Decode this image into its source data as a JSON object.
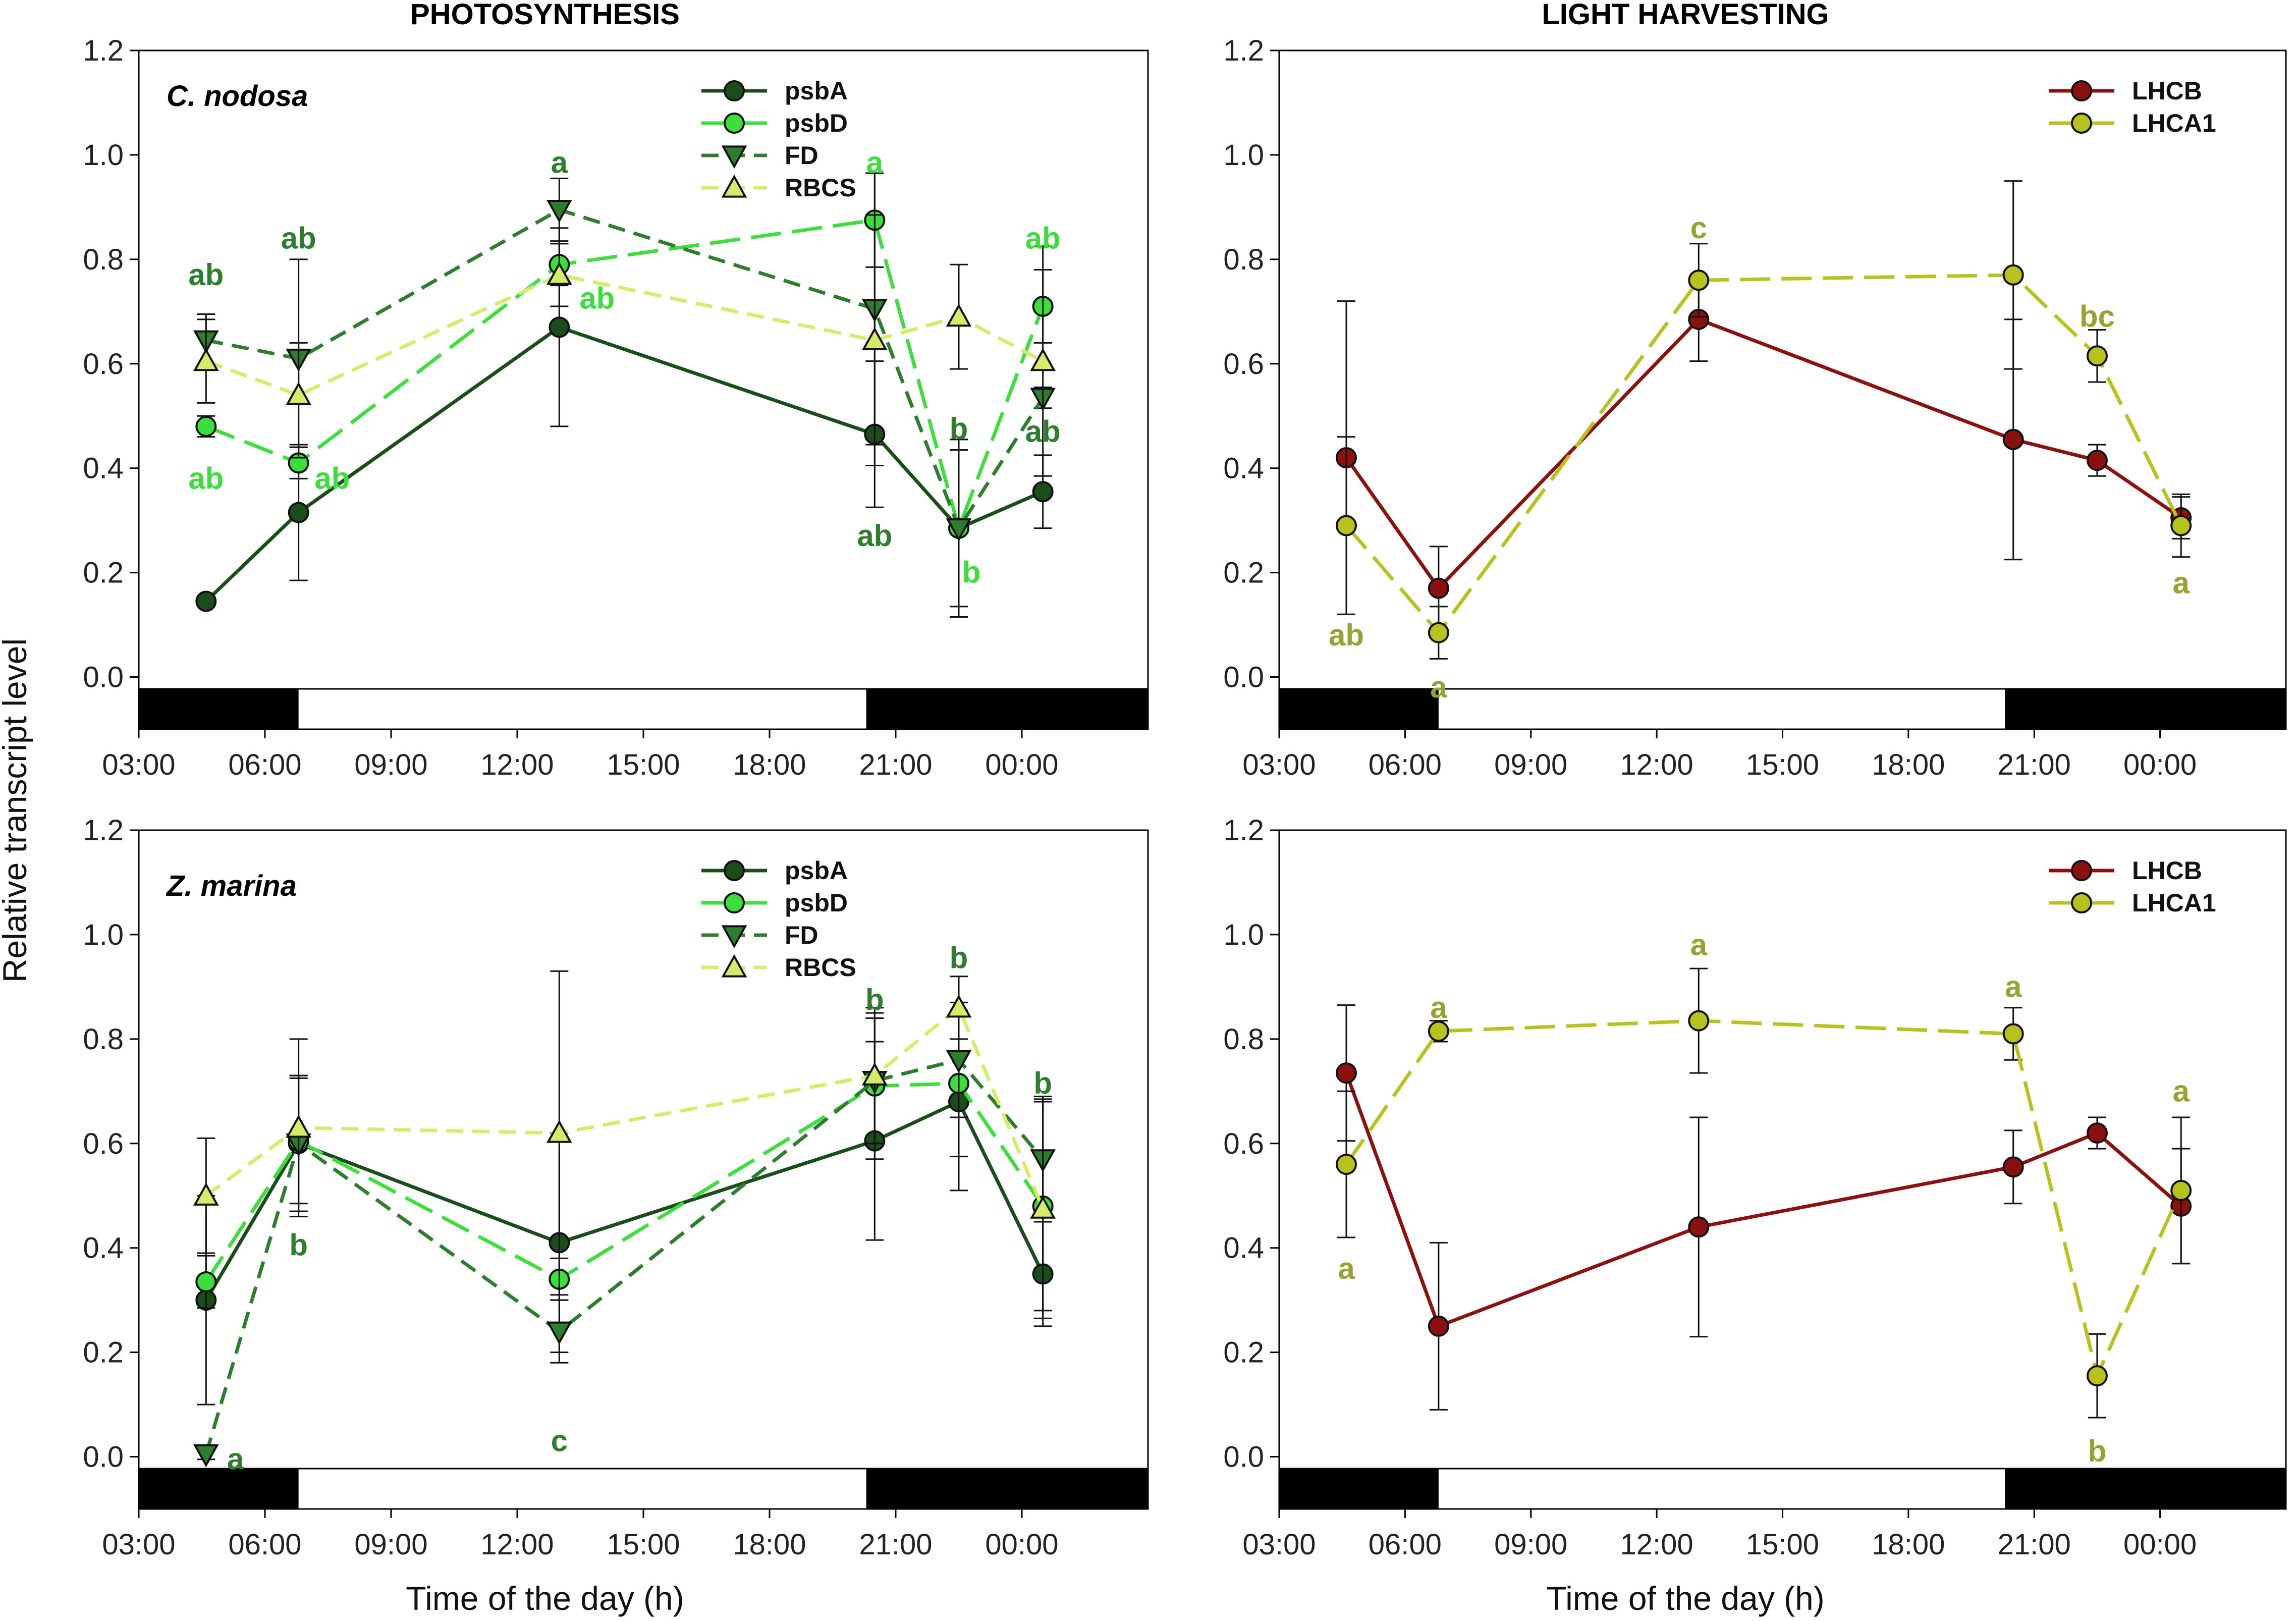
{
  "figure": {
    "titles": [
      "PHOTOSYNTHESIS",
      "LIGHT HARVESTING"
    ],
    "ylabel": "Relative transcript level",
    "xlabel": "Time of the day (h)"
  },
  "chart_data": [
    {
      "id": "cn-photo",
      "type": "line",
      "title": "PHOTOSYNTHESIS",
      "species": "C. nodosa",
      "xlabel": "",
      "ylabel": "Relative transcript level",
      "xlim": [
        3,
        27
      ],
      "ylim": [
        -0.1,
        1.2
      ],
      "xticks": [
        {
          "v": 3,
          "label": "03:00"
        },
        {
          "v": 6,
          "label": "06:00"
        },
        {
          "v": 9,
          "label": "09:00"
        },
        {
          "v": 12,
          "label": "12:00"
        },
        {
          "v": 15,
          "label": "15:00"
        },
        {
          "v": 18,
          "label": "18:00"
        },
        {
          "v": 21,
          "label": "21:00"
        },
        {
          "v": 24,
          "label": "00:00"
        }
      ],
      "yticks": [
        {
          "v": 0,
          "label": "0.0"
        },
        {
          "v": 0.2,
          "label": "0.2"
        },
        {
          "v": 0.4,
          "label": "0.4"
        },
        {
          "v": 0.6,
          "label": "0.6"
        },
        {
          "v": 0.8,
          "label": "0.8"
        },
        {
          "v": 1.0,
          "label": "1.0"
        },
        {
          "v": 1.2,
          "label": "1.2"
        }
      ],
      "dark_periods": [
        [
          3,
          6.8
        ],
        [
          20.3,
          27
        ]
      ],
      "legend_position": "top-center",
      "x": [
        4.6,
        6.8,
        13,
        20.5,
        22.5,
        24.5
      ],
      "series": [
        {
          "name": "psbA",
          "marker": "circle",
          "dash": "solid",
          "color": "#1a4d1a",
          "values": [
            0.145,
            0.315,
            0.67,
            0.465,
            0.285,
            0.355
          ],
          "errors": [
            0.01,
            0.13,
            0.19,
            0.14,
            0.17,
            0.07
          ]
        },
        {
          "name": "psbD",
          "marker": "circle",
          "dash": "long-dash",
          "color": "#3cde3c",
          "values": [
            0.48,
            0.41,
            0.79,
            0.875,
            0.285,
            0.71
          ],
          "errors": [
            0.02,
            0.03,
            0.04,
            0.09,
            0.17,
            0.07
          ]
        },
        {
          "name": "FD",
          "marker": "triangle-down",
          "dash": "dash",
          "color": "#2e7d2e",
          "values": [
            0.645,
            0.61,
            0.895,
            0.705,
            0.285,
            0.535
          ],
          "errors": [
            0.05,
            0.19,
            0.06,
            0.26,
            0.15,
            0.02
          ]
        },
        {
          "name": "RBCS",
          "marker": "triangle-up",
          "dash": "dash",
          "color": "#d4ec6a",
          "values": [
            0.605,
            0.54,
            0.77,
            0.645,
            0.69,
            0.605
          ],
          "errors": [
            0.08,
            0.1,
            0.06,
            0.24,
            0.1,
            0.22
          ]
        }
      ],
      "annotations": [
        {
          "text": "ab",
          "x": 4.6,
          "y": 0.77,
          "color": "#2e7d2e"
        },
        {
          "text": "ab",
          "x": 6.8,
          "y": 0.84,
          "color": "#2e7d2e"
        },
        {
          "text": "a",
          "x": 13,
          "y": 0.985,
          "color": "#2e7d2e"
        },
        {
          "text": "ab",
          "x": 20.5,
          "y": 0.27,
          "color": "#2e7d2e"
        },
        {
          "text": "b",
          "x": 22.5,
          "y": 0.475,
          "color": "#2e7d2e"
        },
        {
          "text": "ab",
          "x": 24.5,
          "y": 0.47,
          "color": "#2e7d2e"
        },
        {
          "text": "ab",
          "x": 4.6,
          "y": 0.38,
          "color": "#3cde3c"
        },
        {
          "text": "ab",
          "x": 7.6,
          "y": 0.38,
          "color": "#3cde3c"
        },
        {
          "text": "ab",
          "x": 13.9,
          "y": 0.725,
          "color": "#3cde3c"
        },
        {
          "text": "a",
          "x": 20.5,
          "y": 0.985,
          "color": "#3cde3c"
        },
        {
          "text": "b",
          "x": 22.8,
          "y": 0.2,
          "color": "#3cde3c"
        },
        {
          "text": "ab",
          "x": 24.5,
          "y": 0.84,
          "color": "#3cde3c"
        }
      ]
    },
    {
      "id": "cn-light",
      "type": "line",
      "title": "LIGHT HARVESTING",
      "xlabel": "",
      "ylabel": "Relative transcript level",
      "xlim": [
        3,
        27
      ],
      "ylim": [
        -0.1,
        1.2
      ],
      "xticks": [
        {
          "v": 3,
          "label": "03:00"
        },
        {
          "v": 6,
          "label": "06:00"
        },
        {
          "v": 9,
          "label": "09:00"
        },
        {
          "v": 12,
          "label": "12:00"
        },
        {
          "v": 15,
          "label": "15:00"
        },
        {
          "v": 18,
          "label": "18:00"
        },
        {
          "v": 21,
          "label": "21:00"
        },
        {
          "v": 24,
          "label": "00:00"
        }
      ],
      "yticks": [
        {
          "v": 0,
          "label": "0.0"
        },
        {
          "v": 0.2,
          "label": "0.2"
        },
        {
          "v": 0.4,
          "label": "0.4"
        },
        {
          "v": 0.6,
          "label": "0.6"
        },
        {
          "v": 0.8,
          "label": "0.8"
        },
        {
          "v": 1.0,
          "label": "1.0"
        },
        {
          "v": 1.2,
          "label": "1.2"
        }
      ],
      "dark_periods": [
        [
          3,
          6.8
        ],
        [
          20.3,
          27
        ]
      ],
      "legend_position": "top-right",
      "x": [
        4.6,
        6.8,
        13,
        20.5,
        22.5,
        24.5
      ],
      "series": [
        {
          "name": "LHCB",
          "marker": "circle",
          "dash": "solid",
          "color": "#8b1010",
          "values": [
            0.42,
            0.17,
            0.685,
            0.455,
            0.415,
            0.305
          ],
          "errors": [
            0.3,
            0.08,
            0.08,
            0.23,
            0.03,
            0.04
          ]
        },
        {
          "name": "LHCA1",
          "marker": "circle",
          "dash": "long-dash",
          "color": "#b8c21e",
          "values": [
            0.29,
            0.085,
            0.76,
            0.77,
            0.615,
            0.29
          ],
          "errors": [
            0.17,
            0.05,
            0.07,
            0.18,
            0.05,
            0.06
          ]
        }
      ],
      "annotations": [
        {
          "text": "ab",
          "x": 4.6,
          "y": 0.08,
          "color": "#97a232"
        },
        {
          "text": "a",
          "x": 6.8,
          "y": -0.02,
          "color": "#97a232"
        },
        {
          "text": "c",
          "x": 13,
          "y": 0.86,
          "color": "#97a232"
        },
        {
          "text": "bc",
          "x": 22.5,
          "y": 0.69,
          "color": "#97a232"
        },
        {
          "text": "a",
          "x": 24.5,
          "y": 0.18,
          "color": "#97a232"
        }
      ]
    },
    {
      "id": "zm-photo",
      "type": "line",
      "title": "",
      "species": "Z. marina",
      "xlabel": "Time of the day (h)",
      "ylabel": "Relative transcript level",
      "xlim": [
        3,
        27
      ],
      "ylim": [
        -0.1,
        1.2
      ],
      "xticks": [
        {
          "v": 3,
          "label": "03:00"
        },
        {
          "v": 6,
          "label": "06:00"
        },
        {
          "v": 9,
          "label": "09:00"
        },
        {
          "v": 12,
          "label": "12:00"
        },
        {
          "v": 15,
          "label": "15:00"
        },
        {
          "v": 18,
          "label": "18:00"
        },
        {
          "v": 21,
          "label": "21:00"
        },
        {
          "v": 24,
          "label": "00:00"
        }
      ],
      "yticks": [
        {
          "v": 0,
          "label": "0.0"
        },
        {
          "v": 0.2,
          "label": "0.2"
        },
        {
          "v": 0.4,
          "label": "0.4"
        },
        {
          "v": 0.6,
          "label": "0.6"
        },
        {
          "v": 0.8,
          "label": "0.8"
        },
        {
          "v": 1.0,
          "label": "1.0"
        },
        {
          "v": 1.2,
          "label": "1.2"
        }
      ],
      "dark_periods": [
        [
          3,
          6.8
        ],
        [
          20.3,
          27
        ]
      ],
      "legend_position": "top-center",
      "x": [
        4.6,
        6.8,
        13,
        20.5,
        22.5,
        24.5
      ],
      "series": [
        {
          "name": "psbA",
          "marker": "circle",
          "dash": "solid",
          "color": "#1a4d1a",
          "values": [
            0.3,
            0.6,
            0.41,
            0.605,
            0.68,
            0.35
          ],
          "errors": [
            0.2,
            0.13,
            0.21,
            0.19,
            0.17,
            0.1
          ]
        },
        {
          "name": "psbD",
          "marker": "circle",
          "dash": "long-dash",
          "color": "#3cde3c",
          "values": [
            0.335,
            0.605,
            0.34,
            0.71,
            0.715,
            0.48
          ],
          "errors": [
            0.05,
            0.12,
            0.04,
            0.14,
            0.14,
            0.2
          ]
        },
        {
          "name": "FD",
          "marker": "triangle-down",
          "dash": "dash",
          "color": "#2e7d2e",
          "values": [
            0.005,
            0.6,
            0.24,
            0.72,
            0.76,
            0.57
          ],
          "errors": [
            0.01,
            0.13,
            0.06,
            0.12,
            0.11,
            0.12
          ]
        },
        {
          "name": "RBCS",
          "marker": "triangle-up",
          "dash": "dash",
          "color": "#d4ec6a",
          "values": [
            0.5,
            0.63,
            0.62,
            0.73,
            0.86,
            0.475
          ],
          "errors": [
            0.11,
            0.17,
            0.31,
            0.13,
            0.06,
            0.21
          ]
        }
      ],
      "annotations": [
        {
          "text": "a",
          "x": 5.3,
          "y": -0.005,
          "color": "#2e7d2e"
        },
        {
          "text": "b",
          "x": 6.8,
          "y": 0.405,
          "color": "#2e7d2e"
        },
        {
          "text": "c",
          "x": 13,
          "y": 0.03,
          "color": "#2e7d2e"
        },
        {
          "text": "b",
          "x": 20.5,
          "y": 0.875,
          "color": "#2e7d2e"
        },
        {
          "text": "b",
          "x": 22.5,
          "y": 0.955,
          "color": "#2e7d2e"
        },
        {
          "text": "b",
          "x": 24.5,
          "y": 0.715,
          "color": "#2e7d2e"
        }
      ]
    },
    {
      "id": "zm-light",
      "type": "line",
      "title": "",
      "xlabel": "Time of the day (h)",
      "ylabel": "Relative transcript level",
      "xlim": [
        3,
        27
      ],
      "ylim": [
        -0.1,
        1.2
      ],
      "xticks": [
        {
          "v": 3,
          "label": "03:00"
        },
        {
          "v": 6,
          "label": "06:00"
        },
        {
          "v": 9,
          "label": "09:00"
        },
        {
          "v": 12,
          "label": "12:00"
        },
        {
          "v": 15,
          "label": "15:00"
        },
        {
          "v": 18,
          "label": "18:00"
        },
        {
          "v": 21,
          "label": "21:00"
        },
        {
          "v": 24,
          "label": "00:00"
        }
      ],
      "yticks": [
        {
          "v": 0,
          "label": "0.0"
        },
        {
          "v": 0.2,
          "label": "0.2"
        },
        {
          "v": 0.4,
          "label": "0.4"
        },
        {
          "v": 0.6,
          "label": "0.6"
        },
        {
          "v": 0.8,
          "label": "0.8"
        },
        {
          "v": 1.0,
          "label": "1.0"
        },
        {
          "v": 1.2,
          "label": "1.2"
        }
      ],
      "dark_periods": [
        [
          3,
          6.8
        ],
        [
          20.3,
          27
        ]
      ],
      "legend_position": "top-right",
      "x": [
        4.6,
        6.8,
        13,
        20.5,
        22.5,
        24.5
      ],
      "series": [
        {
          "name": "LHCB",
          "marker": "circle",
          "dash": "solid",
          "color": "#8b1010",
          "values": [
            0.735,
            0.25,
            0.44,
            0.555,
            0.62,
            0.48
          ],
          "errors": [
            0.13,
            0.16,
            0.21,
            0.07,
            0.03,
            0.11
          ]
        },
        {
          "name": "LHCA1",
          "marker": "circle",
          "dash": "long-dash",
          "color": "#b8c21e",
          "values": [
            0.56,
            0.815,
            0.835,
            0.81,
            0.155,
            0.51
          ],
          "errors": [
            0.14,
            0.02,
            0.1,
            0.05,
            0.08,
            0.14
          ]
        }
      ],
      "annotations": [
        {
          "text": "a",
          "x": 4.6,
          "y": 0.36,
          "color": "#97a232"
        },
        {
          "text": "a",
          "x": 6.8,
          "y": 0.86,
          "color": "#97a232"
        },
        {
          "text": "a",
          "x": 13,
          "y": 0.98,
          "color": "#97a232"
        },
        {
          "text": "a",
          "x": 20.5,
          "y": 0.9,
          "color": "#97a232"
        },
        {
          "text": "b",
          "x": 22.5,
          "y": 0.01,
          "color": "#97a232"
        },
        {
          "text": "a",
          "x": 24.5,
          "y": 0.7,
          "color": "#97a232"
        }
      ]
    }
  ]
}
